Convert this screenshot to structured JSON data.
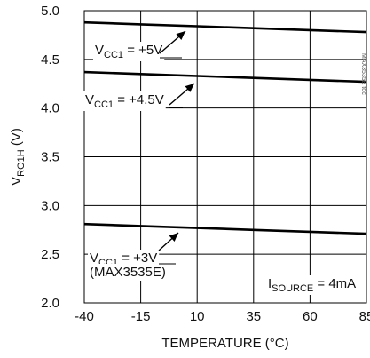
{
  "chart_data": {
    "type": "line",
    "xlabel": "TEMPERATURE (°C)",
    "ylabel": {
      "main": "V",
      "sub": "RO1H",
      "unit": " (V)"
    },
    "xlim": [
      -40,
      85
    ],
    "ylim": [
      2.0,
      5.0
    ],
    "x_ticks": [
      "-40",
      "-15",
      "10",
      "35",
      "60",
      "85"
    ],
    "y_ticks": [
      "5.0",
      "4.5",
      "4.0",
      "3.5",
      "3.0",
      "2.5",
      "2.0"
    ],
    "grid": true,
    "series": [
      {
        "name": "VCC1 = +5V",
        "x": [
          -40,
          -15,
          10,
          35,
          60,
          85
        ],
        "y": [
          4.88,
          4.86,
          4.84,
          4.82,
          4.8,
          4.78
        ],
        "label": {
          "pre": "V",
          "sub": "CC1",
          "post": " = +5V"
        }
      },
      {
        "name": "VCC1 = +4.5V",
        "x": [
          -40,
          -15,
          10,
          35,
          60,
          85
        ],
        "y": [
          4.37,
          4.35,
          4.33,
          4.31,
          4.29,
          4.27
        ],
        "label": {
          "pre": "V",
          "sub": "CC1",
          "post": " = +4.5V"
        }
      },
      {
        "name": "VCC1 = +3V (MAX3535E)",
        "x": [
          -40,
          -15,
          10,
          35,
          60,
          85
        ],
        "y": [
          2.81,
          2.79,
          2.77,
          2.75,
          2.73,
          2.71
        ],
        "label": {
          "pre": "V",
          "sub": "CC1",
          "post": " = +3V",
          "line2": "(MAX3535E)"
        }
      }
    ],
    "annotation": {
      "pre": "I",
      "sub": "SOURCE",
      "post": " = 4mA"
    },
    "edge_text": "MAX3535E toc"
  }
}
